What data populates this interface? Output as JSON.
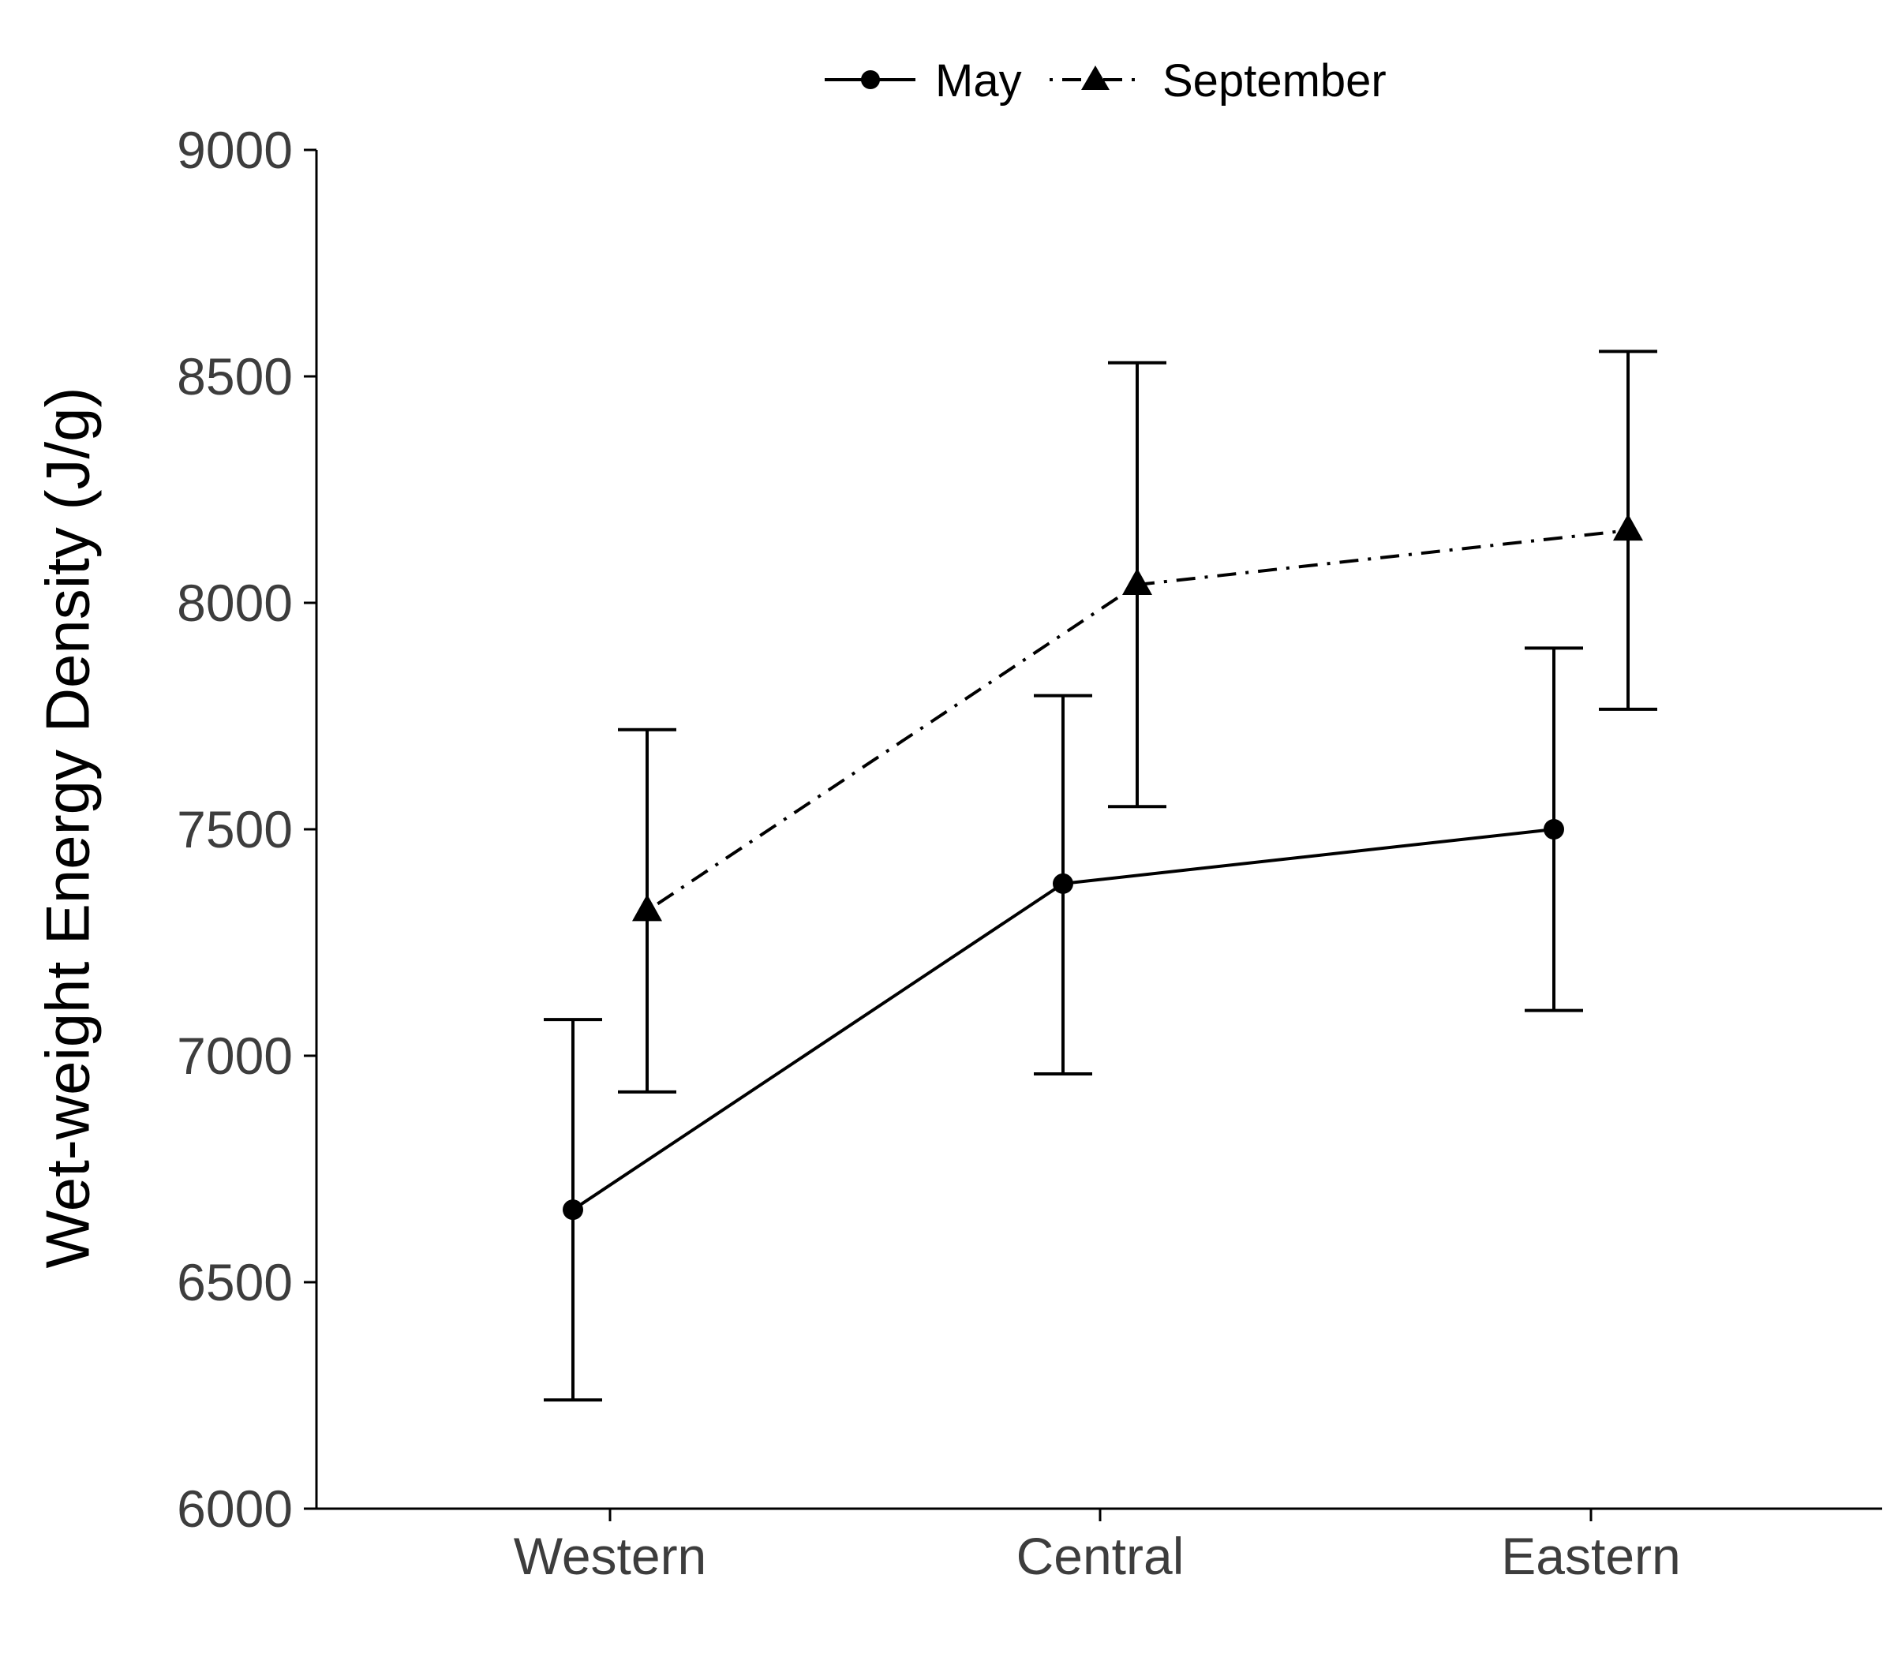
{
  "chart_data": {
    "type": "line",
    "categories": [
      "Western",
      "Central",
      "Eastern"
    ],
    "ylabel": "Wet-weight Energy Density (J/g)",
    "xlabel": "",
    "ylim": [
      6000,
      9000
    ],
    "yticks": [
      "6000",
      "6500",
      "7000",
      "7500",
      "8000",
      "8500",
      "9000"
    ],
    "grid": false,
    "legend_position": "top-center",
    "series": [
      {
        "name": "May",
        "marker": "circle",
        "line_style": "solid",
        "values": [
          6660,
          7380,
          7500
        ],
        "error_low": [
          6240,
          6960,
          7100
        ],
        "error_high": [
          7080,
          7795,
          7900
        ]
      },
      {
        "name": "September",
        "marker": "triangle",
        "line_style": "dash-dot",
        "values": [
          7320,
          8040,
          8160
        ],
        "error_low": [
          6920,
          7550,
          7765
        ],
        "error_high": [
          7720,
          8530,
          8555
        ]
      }
    ],
    "colors": {
      "series": "#000000",
      "tick_text": "#3d3d3d"
    }
  }
}
